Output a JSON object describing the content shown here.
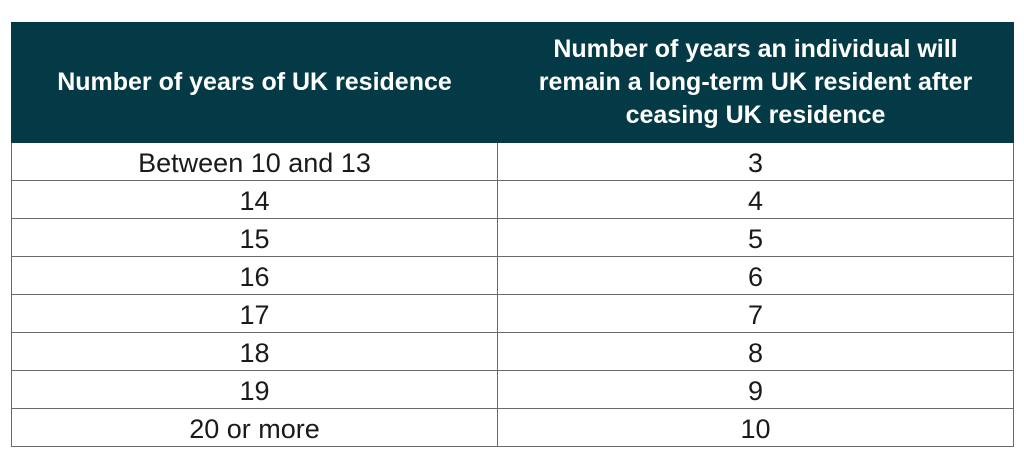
{
  "table": {
    "headers": [
      "Number of years of UK residence",
      "Number of years an individual will remain a long-term UK resident after ceasing UK residence"
    ],
    "rows": [
      [
        "Between 10 and 13",
        "3"
      ],
      [
        "14",
        "4"
      ],
      [
        "15",
        "5"
      ],
      [
        "16",
        "6"
      ],
      [
        "17",
        "7"
      ],
      [
        "18",
        "8"
      ],
      [
        "19",
        "9"
      ],
      [
        "20 or more",
        "10"
      ]
    ],
    "colors": {
      "header_background": "#033a46",
      "header_text": "#ffffff",
      "border": "#6a6a6a"
    }
  }
}
